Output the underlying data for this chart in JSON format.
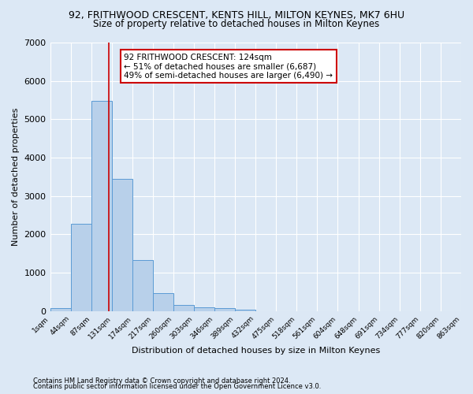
{
  "title": "92, FRITHWOOD CRESCENT, KENTS HILL, MILTON KEYNES, MK7 6HU",
  "subtitle": "Size of property relative to detached houses in Milton Keynes",
  "xlabel": "Distribution of detached houses by size in Milton Keynes",
  "ylabel": "Number of detached properties",
  "footer_line1": "Contains HM Land Registry data © Crown copyright and database right 2024.",
  "footer_line2": "Contains public sector information licensed under the Open Government Licence v3.0.",
  "bin_edges": [
    1,
    44,
    87,
    131,
    174,
    217,
    260,
    303,
    346,
    389,
    432,
    475,
    518,
    561,
    604,
    648,
    691,
    734,
    777,
    820,
    863
  ],
  "bar_heights": [
    80,
    2280,
    5480,
    3450,
    1320,
    470,
    160,
    100,
    70,
    40,
    0,
    0,
    0,
    0,
    0,
    0,
    0,
    0,
    0,
    0
  ],
  "bar_color": "#b8d0ea",
  "bar_edgecolor": "#5b9bd5",
  "property_size": 124,
  "vline_color": "#cc0000",
  "annotation_text": "92 FRITHWOOD CRESCENT: 124sqm\n← 51% of detached houses are smaller (6,687)\n49% of semi-detached houses are larger (6,490) →",
  "annotation_box_edgecolor": "#cc0000",
  "annotation_box_facecolor": "#ffffff",
  "ylim": [
    0,
    7000
  ],
  "yticks": [
    0,
    1000,
    2000,
    3000,
    4000,
    5000,
    6000,
    7000
  ],
  "bg_color": "#dce8f5",
  "axes_bg_color": "#dce8f5",
  "grid_color": "#ffffff",
  "title_fontsize": 9,
  "subtitle_fontsize": 8.5,
  "xlabel_fontsize": 8,
  "ylabel_fontsize": 8
}
